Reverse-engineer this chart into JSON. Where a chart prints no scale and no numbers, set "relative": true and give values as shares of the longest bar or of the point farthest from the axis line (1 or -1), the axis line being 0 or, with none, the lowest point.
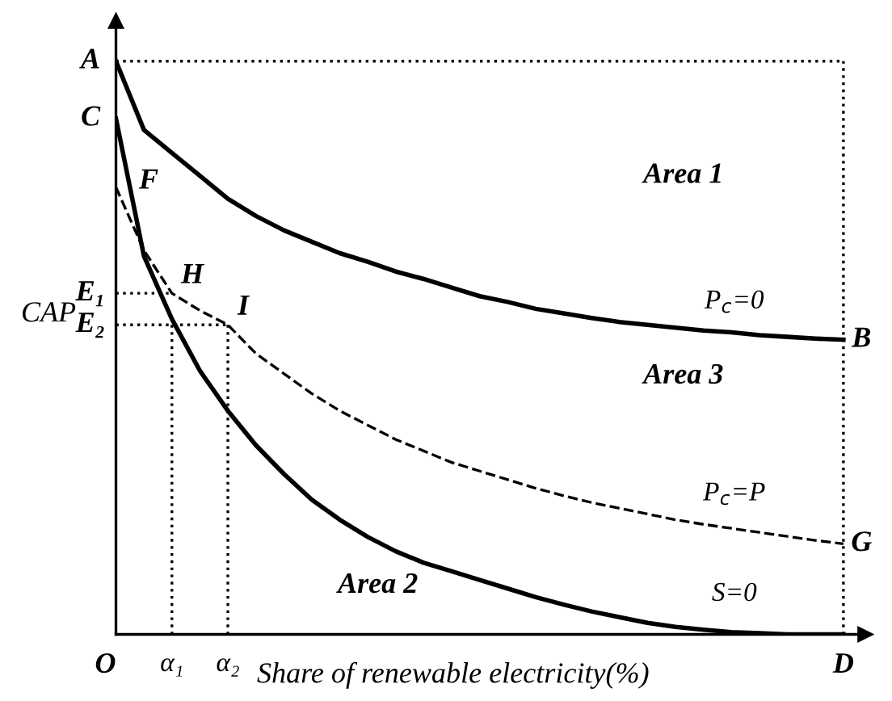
{
  "chart_data": {
    "type": "line",
    "relative": true,
    "xlabel": "Share of renewable electricity(%)",
    "ylabel": "CAP",
    "categories": [
      "O",
      null,
      "α₁",
      null,
      "α₂",
      null,
      null,
      null,
      null,
      null,
      null,
      null,
      null,
      null,
      null,
      null,
      null,
      null,
      null,
      null,
      null,
      null,
      null,
      null,
      null,
      null,
      "D"
    ],
    "series": [
      {
        "color": "#000000",
        "line_style": "solid",
        "values": [
          1.0,
          0.88,
          0.84,
          0.8,
          0.76,
          0.73,
          0.705,
          0.685,
          0.665,
          0.65,
          0.633,
          0.62,
          0.605,
          0.59,
          0.58,
          0.568,
          0.56,
          0.552,
          0.545,
          0.54,
          0.535,
          0.53,
          0.527,
          0.522,
          0.519,
          0.516,
          0.514
        ]
      },
      {
        "color": "#000000",
        "line_style": "solid",
        "values": [
          0.9,
          0.66,
          0.55,
          0.46,
          0.39,
          0.33,
          0.28,
          0.235,
          0.2,
          0.17,
          0.145,
          0.125,
          0.11,
          0.095,
          0.08,
          0.065,
          0.052,
          0.04,
          0.03,
          0.02,
          0.013,
          0.008,
          0.004,
          0.002,
          0,
          0,
          0
        ]
      },
      {
        "color": "#000000",
        "line_style": "dashed",
        "values": [
          0.78,
          0.67,
          0.595,
          0.565,
          0.54,
          0.49,
          0.455,
          0.42,
          0.39,
          0.365,
          0.34,
          0.32,
          0.3,
          0.285,
          0.27,
          0.255,
          0.242,
          0.23,
          0.22,
          0.21,
          0.2,
          0.192,
          0.185,
          0.178,
          0.171,
          0.164,
          0.158
        ]
      },
      {
        "color": "#000000",
        "line_style": "dotted",
        "values": [
          0.595,
          0.595,
          0.595,
          null,
          null,
          null,
          null,
          null,
          null,
          null,
          null,
          null,
          null,
          null,
          null,
          null,
          null,
          null,
          null,
          null,
          null,
          null,
          null,
          null,
          null,
          null,
          null
        ]
      },
      {
        "color": "#000000",
        "line_style": "dotted",
        "values": [
          0.54,
          0.54,
          0.54,
          0.54,
          0.54,
          null,
          null,
          null,
          null,
          null,
          null,
          null,
          null,
          null,
          null,
          null,
          null,
          null,
          null,
          null,
          null,
          null,
          null,
          null,
          null,
          null,
          null
        ]
      },
      {
        "color": "#000000",
        "line_style": "dotted",
        "values": [
          1.0,
          1.0,
          1.0,
          1.0,
          1.0,
          1.0,
          1.0,
          1.0,
          1.0,
          1.0,
          1.0,
          1.0,
          1.0,
          1.0,
          1.0,
          1.0,
          1.0,
          1.0,
          1.0,
          1.0,
          1.0,
          1.0,
          1.0,
          1.0,
          1.0,
          1.0,
          1.0
        ]
      }
    ],
    "ref_lines": [
      {
        "axis": "x",
        "value": "α₁",
        "line_style": "dotted",
        "color": "#000000"
      },
      {
        "axis": "x",
        "value": "α₂",
        "line_style": "dotted",
        "color": "#000000"
      },
      {
        "axis": "x",
        "value": "D",
        "line_style": "dotted",
        "color": "#000000"
      }
    ],
    "annotations": [
      "A",
      "C",
      "F",
      "H",
      "I",
      "E₁",
      "E₂",
      "B",
      "G",
      "P$_{c}$=0",
      "P$_{c}$=P",
      "S=0",
      "Area 1",
      "Area 3",
      "Area 2"
    ]
  }
}
